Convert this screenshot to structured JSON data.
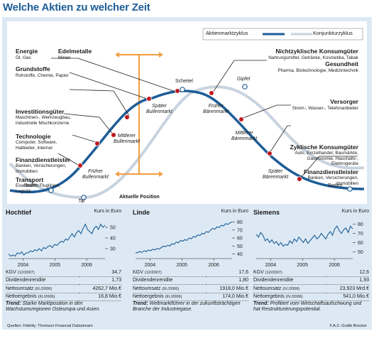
{
  "title": "Welche Aktien zu welcher Zeit",
  "legend": {
    "aktien": "Aktienmarktzyklus",
    "konjunktur": "Konjunkturzyklus"
  },
  "colors": {
    "aktien": "#1d5d97",
    "konjunktur": "#c8d3de",
    "marker": "#c0171d",
    "arrow": "#f0a24a",
    "title": "#1d5d97",
    "panel": "#dce9f4"
  },
  "sectors": [
    {
      "name": "Energie",
      "detail": "Öl, Gas"
    },
    {
      "name": "Edelmetalle",
      "detail": "Minen"
    },
    {
      "name": "Grundstoffe",
      "detail": "Rohstoffe, Chemie, Papier"
    },
    {
      "name": "Investitionsgüter",
      "detail": "Maschinen-, Werkzeugbau,\nindustrielle Mischkonzerne"
    },
    {
      "name": "Technologie",
      "detail": "Computer, Software,\nHalbleiter, Internet"
    },
    {
      "name": "Finanzdienstleister",
      "detail": "Banken, Versicherungen,\nImmobilien"
    },
    {
      "name": "Transport",
      "detail": "Eisenbahn, Fluglinien,\nLogistik"
    },
    {
      "name": "Nichtzyklische Konsumgüter",
      "detail": "Nahrungsmittel, Getränke, Kosmetika, Tabak"
    },
    {
      "name": "Gesundheit",
      "detail": "Pharma, Biotechnologie, Medizintechnik"
    },
    {
      "name": "Versorger",
      "detail": "Strom-, Wasser-, Telefonanbieter"
    },
    {
      "name": "Zyklische Konsumgüter",
      "detail": "Auto, Einzelhandel, Baumärkte,\nGastronomie, Haushalts-,\nElektrogeräte"
    },
    {
      "name": "Finanzdienstleister",
      "detail": "Banken, Versicherungen,\nImmobilien"
    }
  ],
  "phases": {
    "boden_left": "Boden",
    "tal": "Tal",
    "frueher_bullen": "Früher\nBullenmarkt",
    "mittlerer_bullen": "Mittlerer\nBullenmarkt",
    "spaeter_bullen": "Später\nBullenmarkt",
    "scheitel": "Scheitel",
    "gipfel": "Gipfel",
    "frueher_baeren": "Früher\nBärenmarkt",
    "mittlerer_baeren": "Mittlerer\nBärenmarkt",
    "spaeter_baeren": "Später\nBärenmarkt",
    "boden_right": "Boden",
    "aktuelle": "Aktuelle Position"
  },
  "chart_data": [
    {
      "type": "line",
      "title": "Hochtief",
      "ylabel": "Kurs in Euro",
      "x_ticks": [
        "2004",
        "2005",
        "2006"
      ],
      "y_ticks": [
        30,
        40,
        50
      ],
      "ylim": [
        22,
        58
      ],
      "series": [
        {
          "values": [
            25,
            23,
            24,
            23,
            26,
            25,
            27,
            24,
            26,
            26,
            28,
            27,
            29,
            28,
            30,
            28,
            31,
            30,
            32,
            33,
            31,
            34,
            33,
            35,
            37,
            36,
            39,
            38,
            41,
            44,
            41,
            45,
            47,
            44,
            49,
            53,
            48,
            46,
            44,
            49,
            51,
            48,
            53,
            50,
            52
          ]
        }
      ]
    },
    {
      "type": "line",
      "title": "Linde",
      "ylabel": "Kurs in Euro",
      "x_ticks": [
        "2004",
        "2005",
        "2006"
      ],
      "y_ticks": [
        40,
        50,
        60,
        70,
        80
      ],
      "ylim": [
        36,
        84
      ],
      "series": [
        {
          "values": [
            41,
            42,
            43,
            42,
            44,
            43,
            45,
            44,
            46,
            45,
            47,
            46,
            48,
            50,
            49,
            51,
            50,
            53,
            52,
            55,
            54,
            57,
            56,
            58,
            57,
            60,
            59,
            62,
            61,
            64,
            63,
            66,
            65,
            68,
            67,
            70,
            72,
            71,
            74,
            73,
            76,
            75,
            78,
            77,
            79,
            80
          ]
        }
      ]
    },
    {
      "type": "line",
      "title": "Siemens",
      "ylabel": "Kurs in Euro",
      "x_ticks": [
        "2004",
        "2005",
        "2006"
      ],
      "y_ticks": [
        50,
        60,
        70,
        80
      ],
      "ylim": [
        44,
        86
      ],
      "series": [
        {
          "values": [
            69,
            66,
            71,
            68,
            62,
            64,
            60,
            63,
            59,
            61,
            57,
            60,
            56,
            58,
            57,
            62,
            59,
            64,
            61,
            66,
            63,
            60,
            64,
            59,
            62,
            65,
            68,
            64,
            66,
            70,
            67,
            64,
            69,
            72,
            68,
            75,
            78,
            73,
            70,
            74,
            76,
            71,
            78,
            75
          ]
        }
      ]
    }
  ],
  "minis": [
    {
      "name": "Hochtief",
      "unit": "Kurs in Euro",
      "rows": [
        {
          "label": "KGV",
          "period": "(12/2007)",
          "value": "34,7"
        },
        {
          "label": "Dividendenrendite",
          "period": "",
          "value": "1,73"
        },
        {
          "label": "Nettoumsatz",
          "period": "(III./2006)",
          "value": "4262,7 Mio.€"
        },
        {
          "label": "Nettoergebnis",
          "period": "(III./2006)",
          "value": "16,8 Mio.€"
        }
      ],
      "trend_label": "Trend:",
      "trend_text": "Starke Marktposition in den Wachstumsregionen Osteuropa und Asien."
    },
    {
      "name": "Linde",
      "unit": "Kurs in Euro",
      "rows": [
        {
          "label": "KGV",
          "period": "(12/2007)",
          "value": "17,6"
        },
        {
          "label": "Dividendenrendite",
          "period": "",
          "value": "1,80"
        },
        {
          "label": "Nettoumsatz",
          "period": "(III./2006)",
          "value": "1918,0 Mio.€"
        },
        {
          "label": "Nettoergebnis",
          "period": "(III./2006)",
          "value": "174,0 Mio.€"
        }
      ],
      "trend_label": "Trend:",
      "trend_text": "Weltmarktführer in der zukunftsträchtigen Branche der Industriegase."
    },
    {
      "name": "Siemens",
      "unit": "Kurs in Euro",
      "rows": [
        {
          "label": "KGV",
          "period": "(12/2007)",
          "value": "12,6"
        },
        {
          "label": "Dividendenrendite",
          "period": "",
          "value": "1,93"
        },
        {
          "label": "Nettoumsatz",
          "period": "(IV./2006)",
          "value": "23,923 Mrd.€"
        },
        {
          "label": "Nettoergebnis",
          "period": "(IV./2006)",
          "value": "541,0 Mio.€"
        }
      ],
      "trend_label": "Trend:",
      "trend_text": "Profitiert vom Wirtschaftsaufschwung und hat Restrukturierungspotential."
    }
  ],
  "footer": {
    "source": "Quellen: Fidelity; Thomson Financial Datastream",
    "credit": "F.A.Z.-Grafik Brocker"
  }
}
